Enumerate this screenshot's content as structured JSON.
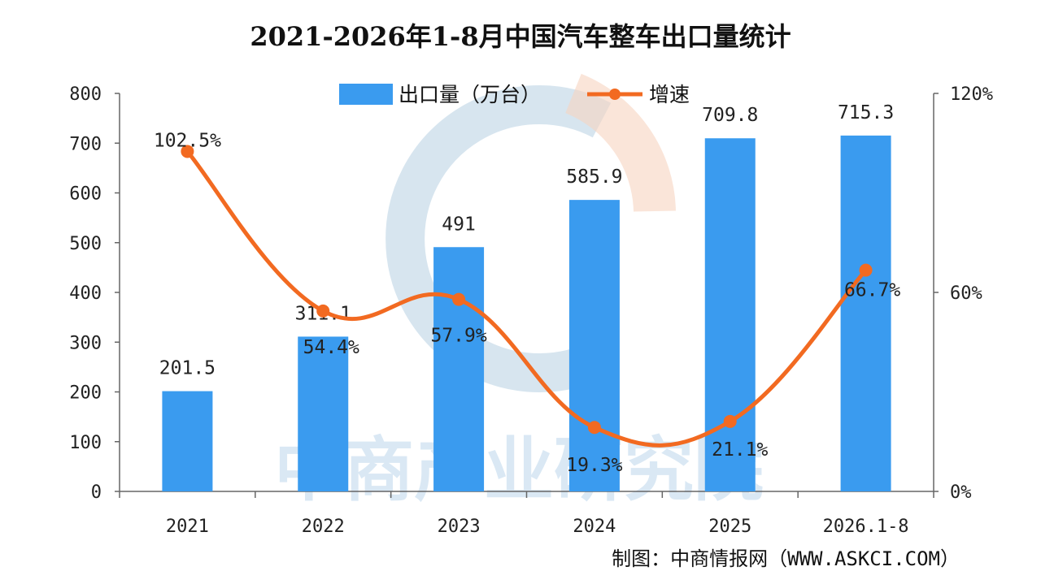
{
  "chart_data": {
    "type": "bar",
    "title": "2021-2026年1-8月中国汽车整车出口量统计",
    "categories": [
      "2021",
      "2022",
      "2023",
      "2024",
      "2025",
      "2026.1-8"
    ],
    "series": [
      {
        "name": "出口量（万台）",
        "type": "bar",
        "axis": "left",
        "color": "#3a9bef",
        "values": [
          201.5,
          311.1,
          491,
          585.9,
          709.8,
          715.3
        ],
        "labels": [
          "201.5",
          "311.1",
          "491",
          "585.9",
          "709.8",
          "715.3"
        ]
      },
      {
        "name": "增速",
        "type": "line",
        "axis": "right",
        "color": "#f26a21",
        "values": [
          102.5,
          54.4,
          57.9,
          19.3,
          21.1,
          66.7
        ],
        "labels": [
          "102.5%",
          "54.4%",
          "57.9%",
          "19.3%",
          "21.1%",
          "66.7%"
        ]
      }
    ],
    "y_left": {
      "min": 0,
      "max": 800,
      "ticks": [
        "0",
        "100",
        "200",
        "300",
        "400",
        "500",
        "600",
        "700",
        "800"
      ]
    },
    "y_right": {
      "min": 0,
      "max": 120,
      "ticks": [
        "0%",
        "60%",
        "120%"
      ]
    },
    "legend_position": "top-center",
    "grid": false
  },
  "watermark": {
    "text": "中商产业研究院"
  },
  "source": "制图：中商情报网（WWW.ASKCI.COM）"
}
